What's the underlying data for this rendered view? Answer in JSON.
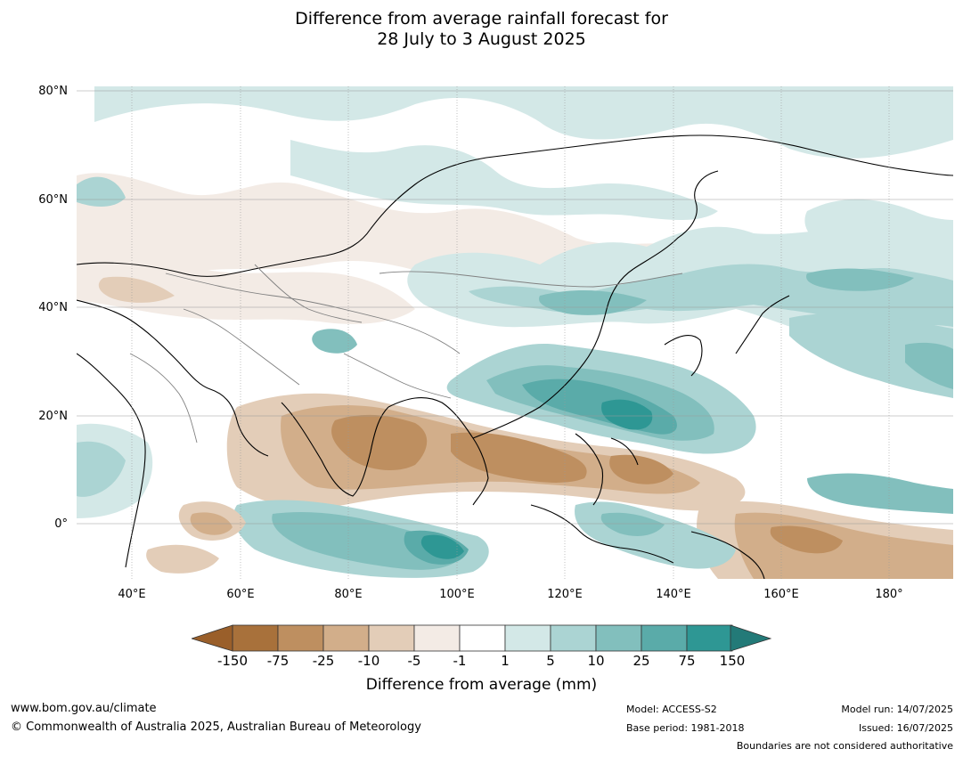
{
  "title": {
    "line1": "Difference from average rainfall forecast for",
    "line2": "28 July to 3 August 2025"
  },
  "lat_labels": [
    "80°N",
    "60°N",
    "40°N",
    "20°N",
    "0°"
  ],
  "lon_labels": [
    "40°E",
    "60°E",
    "80°E",
    "100°E",
    "120°E",
    "140°E",
    "160°E",
    "180°"
  ],
  "colorbar": {
    "ticks": [
      "-150",
      "-75",
      "-25",
      "-10",
      "-5",
      "-1",
      "1",
      "5",
      "10",
      "25",
      "75",
      "150"
    ],
    "colors": [
      "#a8713b",
      "#be8f60",
      "#d2ae8a",
      "#e3cdb8",
      "#f3ebe5",
      "#ffffff",
      "#d3e8e7",
      "#abd4d3",
      "#82bfbd",
      "#5aaba9",
      "#2e9794"
    ],
    "under_color": "#9a5f2a",
    "over_color": "#237a78",
    "label": "Difference from average (mm)"
  },
  "footer": {
    "website": "www.bom.gov.au/climate",
    "copyright": "© Commonwealth of Australia 2025, Australian Bureau of Meteorology",
    "model": "Model: ACCESS-S2",
    "base_period": "Base period: 1981-2018",
    "model_run": "Model run: 14/07/2025",
    "issued": "Issued: 16/07/2025",
    "disclaimer": "Boundaries are not considered authoritative"
  }
}
